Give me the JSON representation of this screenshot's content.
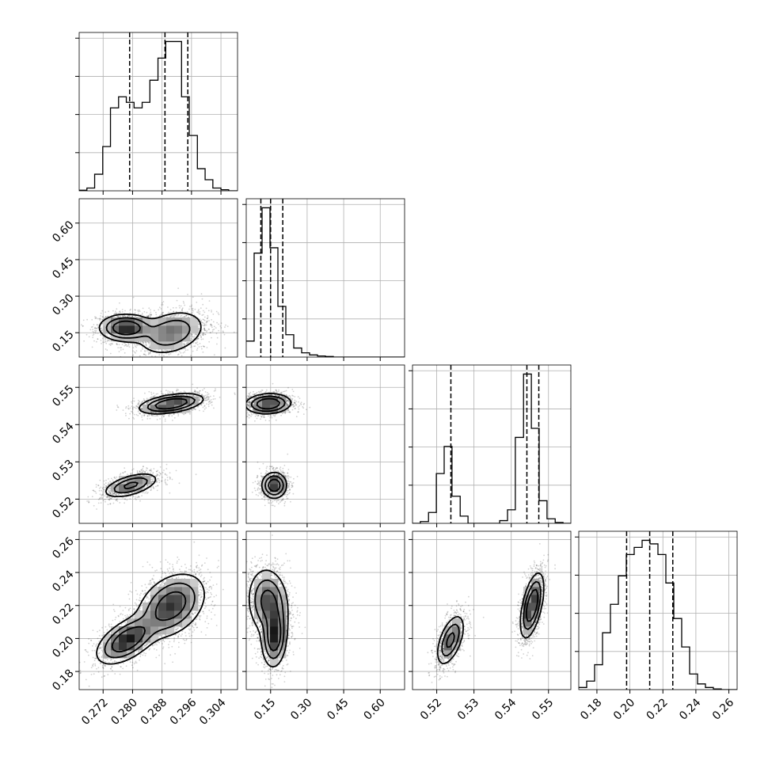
{
  "chart_data": {
    "type": "corner",
    "grid": true,
    "parameters": [
      {
        "range": [
          0.2655,
          0.3085
        ],
        "ticks": [
          0.272,
          0.28,
          0.288,
          0.296,
          0.304
        ],
        "tick_labels": [
          "0.272",
          "0.280",
          "0.288",
          "0.296",
          "0.304"
        ],
        "quantiles": [
          0.2792,
          0.2888,
          0.295
        ],
        "hist_bins": [
          0.2655,
          0.2676,
          0.2697,
          0.2719,
          0.274,
          0.2762,
          0.2783,
          0.2804,
          0.2826,
          0.2847,
          0.2869,
          0.289,
          0.2911,
          0.2933,
          0.2954,
          0.2976,
          0.2997,
          0.3018,
          0.304,
          0.3061,
          0.3085
        ],
        "hist_counts": [
          1,
          5,
          30,
          80,
          150,
          170,
          160,
          150,
          160,
          200,
          240,
          270,
          270,
          170,
          100,
          40,
          20,
          5,
          2,
          0
        ]
      },
      {
        "range": [
          0.05,
          0.7
        ],
        "ticks": [
          0.15,
          0.3,
          0.45,
          0.6
        ],
        "tick_labels": [
          "0.15",
          "0.30",
          "0.45",
          "0.60"
        ],
        "quantiles": [
          0.11,
          0.15,
          0.2
        ],
        "hist_bins": [
          0.05,
          0.0825,
          0.115,
          0.1475,
          0.18,
          0.2125,
          0.245,
          0.2775,
          0.31,
          0.3425,
          0.375,
          0.4075,
          0.44,
          0.4725,
          0.505,
          0.5375,
          0.57,
          0.6025,
          0.635,
          0.6675,
          0.7
        ],
        "hist_counts": [
          30,
          195,
          280,
          205,
          95,
          42,
          17,
          8,
          4,
          2,
          1,
          0,
          0,
          0,
          0,
          0,
          0,
          0,
          0,
          0
        ]
      },
      {
        "range": [
          0.5135,
          0.556
        ],
        "ticks": [
          0.52,
          0.53,
          0.54,
          0.55
        ],
        "tick_labels": [
          "0.52",
          "0.53",
          "0.54",
          "0.55"
        ],
        "quantiles": [
          0.5238,
          0.5442,
          0.5474
        ],
        "hist_bins": [
          0.5135,
          0.5156,
          0.5178,
          0.5199,
          0.522,
          0.5241,
          0.5263,
          0.5284,
          0.5305,
          0.5326,
          0.5348,
          0.5369,
          0.539,
          0.5411,
          0.5433,
          0.5454,
          0.5475,
          0.5496,
          0.5518,
          0.5539,
          0.556
        ],
        "hist_counts": [
          0,
          2,
          12,
          55,
          85,
          30,
          8,
          0,
          0,
          0,
          0,
          3,
          15,
          95,
          165,
          105,
          25,
          5,
          1,
          0
        ]
      },
      {
        "range": [
          0.169,
          0.265
        ],
        "ticks": [
          0.18,
          0.2,
          0.22,
          0.24,
          0.26
        ],
        "tick_labels": [
          "0.18",
          "0.20",
          "0.22",
          "0.24",
          "0.26"
        ],
        "quantiles": [
          0.198,
          0.212,
          0.226
        ],
        "hist_bins": [
          0.169,
          0.1738,
          0.1786,
          0.1834,
          0.1882,
          0.193,
          0.1978,
          0.2026,
          0.2074,
          0.2122,
          0.217,
          0.2218,
          0.2266,
          0.2314,
          0.2362,
          0.241,
          0.2458,
          0.2506,
          0.2554,
          0.2602,
          0.265
        ],
        "hist_counts": [
          3,
          12,
          35,
          80,
          120,
          160,
          190,
          200,
          210,
          205,
          190,
          150,
          100,
          60,
          22,
          8,
          3,
          1,
          0,
          0
        ]
      }
    ],
    "pairs": [
      {
        "row": 1,
        "col": 0,
        "clusters": [
          {
            "cx": 0.2782,
            "cy": 0.17,
            "sx": 0.0035,
            "sy": 0.027,
            "rho": 0.0,
            "w": 0.45
          },
          {
            "cx": 0.2905,
            "cy": 0.15,
            "sx": 0.0045,
            "sy": 0.045,
            "rho": 0.3,
            "w": 0.55
          }
        ]
      },
      {
        "row": 2,
        "col": 0,
        "clusters": [
          {
            "cx": 0.2795,
            "cy": 0.5237,
            "sx": 0.0036,
            "sy": 0.0016,
            "rho": 0.55,
            "w": 0.4
          },
          {
            "cx": 0.2905,
            "cy": 0.5456,
            "sx": 0.0042,
            "sy": 0.0013,
            "rho": 0.45,
            "w": 0.6
          }
        ]
      },
      {
        "row": 2,
        "col": 1,
        "clusters": [
          {
            "cx": 0.165,
            "cy": 0.5237,
            "sx": 0.025,
            "sy": 0.0017,
            "rho": 0.0,
            "w": 0.4
          },
          {
            "cx": 0.14,
            "cy": 0.5456,
            "sx": 0.045,
            "sy": 0.0013,
            "rho": 0.1,
            "w": 0.6
          }
        ]
      },
      {
        "row": 3,
        "col": 0,
        "clusters": [
          {
            "cx": 0.2785,
            "cy": 0.199,
            "sx": 0.004,
            "sy": 0.007,
            "rho": 0.55,
            "w": 0.4
          },
          {
            "cx": 0.2905,
            "cy": 0.22,
            "sx": 0.0045,
            "sy": 0.0095,
            "rho": 0.35,
            "w": 0.6
          }
        ]
      },
      {
        "row": 3,
        "col": 1,
        "clusters": [
          {
            "cx": 0.165,
            "cy": 0.201,
            "sx": 0.025,
            "sy": 0.009,
            "rho": 0.1,
            "w": 0.4
          },
          {
            "cx": 0.14,
            "cy": 0.222,
            "sx": 0.04,
            "sy": 0.01,
            "rho": -0.1,
            "w": 0.6
          }
        ]
      },
      {
        "row": 3,
        "col": 2,
        "clusters": [
          {
            "cx": 0.5237,
            "cy": 0.199,
            "sx": 0.0018,
            "sy": 0.0075,
            "rho": 0.55,
            "w": 0.4
          },
          {
            "cx": 0.5456,
            "cy": 0.22,
            "sx": 0.0015,
            "sy": 0.0095,
            "rho": 0.55,
            "w": 0.6
          }
        ]
      }
    ]
  }
}
